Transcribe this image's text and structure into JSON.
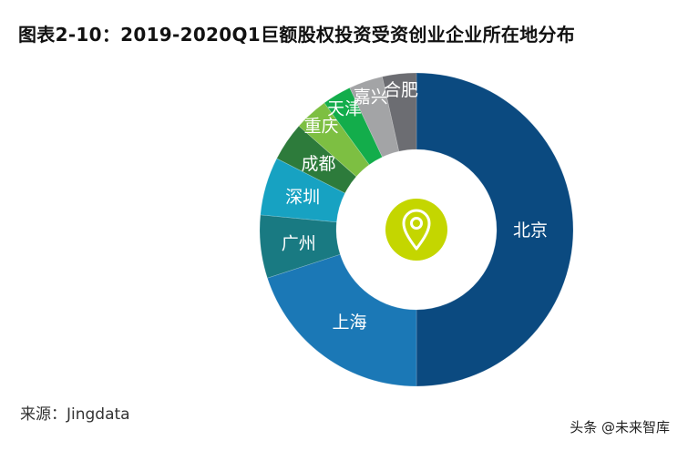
{
  "chart_data": {
    "type": "pie",
    "variant": "donut",
    "title": "图表2-10：2019-2020Q1巨额股权投资受资创业企业所在地分布",
    "categories": [
      "北京",
      "上海",
      "广州",
      "深圳",
      "成都",
      "重庆",
      "天津",
      "嘉兴",
      "合肥"
    ],
    "values": [
      50,
      20,
      6.5,
      6,
      4,
      3.5,
      3,
      3.5,
      3.5
    ],
    "unit": "%",
    "colors": [
      "#0b4a80",
      "#1b78b6",
      "#197a82",
      "#17a2c2",
      "#2d7b3b",
      "#7dbf42",
      "#13ad4b",
      "#a3a4a6",
      "#6c6d72"
    ],
    "legend": "none",
    "center_icon": "map-pin-icon",
    "center_icon_color": "#c4d600"
  },
  "source": "来源：Jingdata",
  "watermark": "头条 @未来智库"
}
